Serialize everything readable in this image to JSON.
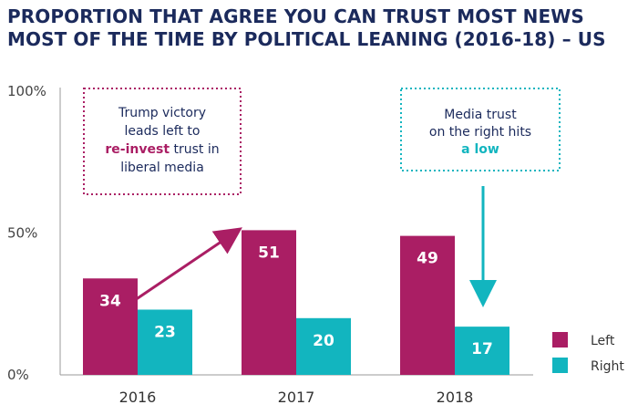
{
  "title_lines": [
    "PROPORTION THAT AGREE YOU CAN TRUST MOST NEWS",
    "MOST OF THE TIME BY POLITICAL LEANING (2016-18) – US"
  ],
  "colors": {
    "left": "#aa1e64",
    "right": "#12b5bf",
    "title": "#1b2a5c"
  },
  "chart_data": {
    "type": "bar",
    "categories": [
      "2016",
      "2017",
      "2018"
    ],
    "series": [
      {
        "name": "Left",
        "values": [
          34,
          51,
          49
        ]
      },
      {
        "name": "Right",
        "values": [
          23,
          20,
          17
        ]
      }
    ],
    "ylim": [
      0,
      100
    ],
    "yticks": [
      "0%",
      "50%",
      "100%"
    ],
    "ytick_values": [
      0,
      50,
      100
    ],
    "legend": [
      "Left",
      "Right"
    ],
    "legend_position": "bottom-right",
    "grid": false,
    "annotations": [
      {
        "lines": [
          [
            {
              "text": "Trump victory"
            }
          ],
          [
            {
              "text": "leads left to"
            }
          ],
          [
            {
              "text": "re-invest",
              "emphasis": "left"
            },
            {
              "text": " trust in"
            }
          ],
          [
            {
              "text": "liberal media"
            }
          ]
        ]
      },
      {
        "lines": [
          [
            {
              "text": "Media trust"
            }
          ],
          [
            {
              "text": "on the right hits"
            }
          ],
          [
            {
              "text": "a low",
              "emphasis": "right"
            }
          ]
        ]
      }
    ]
  }
}
